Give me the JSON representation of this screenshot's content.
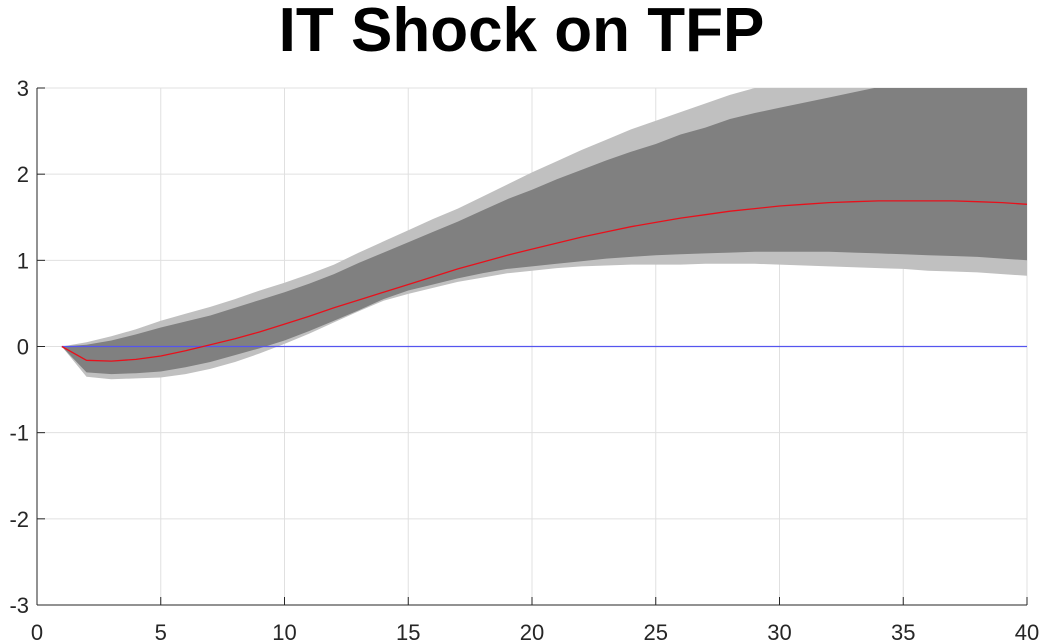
{
  "chart_data": {
    "type": "line",
    "title": "IT Shock on TFP",
    "xlabel": "",
    "ylabel": "",
    "xlim": [
      0,
      40
    ],
    "ylim": [
      -3,
      3
    ],
    "xticks": [
      0,
      5,
      10,
      15,
      20,
      25,
      30,
      35,
      40
    ],
    "yticks": [
      -3,
      -2,
      -1,
      0,
      1,
      2,
      3
    ],
    "grid": true,
    "legend": "none",
    "x": [
      1,
      2,
      3,
      4,
      5,
      6,
      7,
      8,
      9,
      10,
      11,
      12,
      13,
      14,
      15,
      16,
      17,
      18,
      19,
      20,
      21,
      22,
      23,
      24,
      25,
      26,
      27,
      28,
      29,
      30,
      31,
      32,
      33,
      34,
      35,
      36,
      37,
      38,
      39,
      40
    ],
    "series": [
      {
        "role": "median",
        "color": "#e8101b",
        "values": [
          0,
          -0.16,
          -0.17,
          -0.15,
          -0.11,
          -0.05,
          0.02,
          0.09,
          0.17,
          0.26,
          0.35,
          0.45,
          0.54,
          0.63,
          0.72,
          0.81,
          0.9,
          0.98,
          1.06,
          1.13,
          1.2,
          1.27,
          1.33,
          1.39,
          1.44,
          1.49,
          1.53,
          1.57,
          1.6,
          1.63,
          1.65,
          1.67,
          1.68,
          1.69,
          1.69,
          1.69,
          1.69,
          1.68,
          1.67,
          1.65
        ]
      },
      {
        "role": "zero-line",
        "color": "#5555ee",
        "values": [
          0,
          0,
          0,
          0,
          0,
          0,
          0,
          0,
          0,
          0,
          0,
          0,
          0,
          0,
          0,
          0,
          0,
          0,
          0,
          0,
          0,
          0,
          0,
          0,
          0,
          0,
          0,
          0,
          0,
          0,
          0,
          0,
          0,
          0,
          0,
          0,
          0,
          0,
          0,
          0
        ]
      }
    ],
    "bands": [
      {
        "role": "outer",
        "color": "#c0c0c0",
        "upper": [
          0,
          0.05,
          0.12,
          0.2,
          0.3,
          0.38,
          0.46,
          0.55,
          0.65,
          0.74,
          0.84,
          0.95,
          1.09,
          1.22,
          1.35,
          1.48,
          1.6,
          1.74,
          1.88,
          2.02,
          2.15,
          2.28,
          2.4,
          2.52,
          2.62,
          2.72,
          2.82,
          2.92,
          3.0,
          3.05,
          3.08,
          3.1,
          3.12,
          3.14,
          3.16,
          3.18,
          3.2,
          3.22,
          3.24,
          3.26
        ],
        "lower": [
          0,
          -0.35,
          -0.38,
          -0.37,
          -0.36,
          -0.32,
          -0.26,
          -0.18,
          -0.08,
          0.03,
          0.15,
          0.28,
          0.41,
          0.53,
          0.61,
          0.68,
          0.75,
          0.8,
          0.85,
          0.88,
          0.91,
          0.93,
          0.94,
          0.95,
          0.95,
          0.95,
          0.96,
          0.96,
          0.96,
          0.95,
          0.94,
          0.93,
          0.92,
          0.91,
          0.9,
          0.88,
          0.87,
          0.86,
          0.84,
          0.82
        ]
      },
      {
        "role": "inner",
        "color": "#808080",
        "upper": [
          0,
          0.02,
          0.07,
          0.14,
          0.22,
          0.29,
          0.36,
          0.45,
          0.54,
          0.63,
          0.73,
          0.84,
          0.97,
          1.09,
          1.21,
          1.33,
          1.45,
          1.58,
          1.71,
          1.82,
          1.94,
          2.05,
          2.16,
          2.26,
          2.35,
          2.46,
          2.54,
          2.64,
          2.71,
          2.77,
          2.83,
          2.89,
          2.95,
          3.01,
          3.06,
          3.12,
          3.16,
          3.2,
          3.24,
          3.27
        ],
        "lower": [
          0,
          -0.3,
          -0.32,
          -0.31,
          -0.29,
          -0.24,
          -0.18,
          -0.1,
          -0.02,
          0.07,
          0.18,
          0.3,
          0.42,
          0.55,
          0.65,
          0.72,
          0.79,
          0.85,
          0.9,
          0.93,
          0.96,
          0.99,
          1.02,
          1.04,
          1.06,
          1.07,
          1.08,
          1.09,
          1.1,
          1.1,
          1.1,
          1.1,
          1.09,
          1.08,
          1.07,
          1.06,
          1.05,
          1.04,
          1.02,
          1.0
        ]
      }
    ]
  }
}
